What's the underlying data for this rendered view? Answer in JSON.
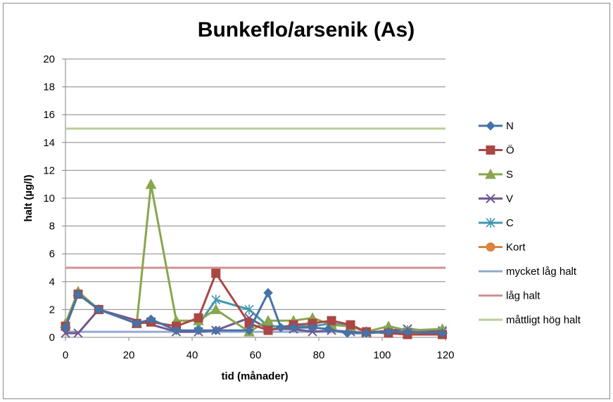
{
  "chart_data": {
    "type": "line",
    "title": "Bunkeflo/arsenik (As)",
    "xlabel": "tid (månader)",
    "ylabel": "halt (µg/l)",
    "xlim": [
      0,
      120
    ],
    "ylim": [
      0,
      20
    ],
    "xticks": [
      0,
      20,
      40,
      60,
      80,
      100,
      120
    ],
    "yticks": [
      0,
      2,
      4,
      6,
      8,
      10,
      12,
      14,
      16,
      18,
      20
    ],
    "grid": "horizontal",
    "legend_position": "right",
    "series": [
      {
        "name": "N",
        "color": "#4572a7",
        "marker": "diamond",
        "points": [
          [
            0,
            0.7
          ],
          [
            4,
            3.1
          ],
          [
            10.5,
            2.0
          ],
          [
            22.5,
            1.0
          ],
          [
            27,
            1.3
          ],
          [
            35,
            0.5
          ],
          [
            42,
            0.5
          ],
          [
            47.5,
            0.5
          ],
          [
            58,
            0.5
          ],
          [
            64,
            3.2
          ],
          [
            68,
            0.7
          ],
          [
            72,
            0.7
          ],
          [
            78,
            0.7
          ],
          [
            83,
            0.6
          ],
          [
            89,
            0.3
          ],
          [
            95,
            0.3
          ],
          [
            102,
            0.4
          ],
          [
            108,
            0.4
          ],
          [
            119,
            0.3
          ]
        ]
      },
      {
        "name": "Ö",
        "color": "#aa4643",
        "marker": "square",
        "points": [
          [
            0,
            0.8
          ],
          [
            4,
            3.1
          ],
          [
            10.5,
            2.0
          ],
          [
            22.5,
            1.0
          ],
          [
            27,
            1.1
          ],
          [
            35,
            0.8
          ],
          [
            42,
            1.4
          ],
          [
            47.5,
            4.6
          ],
          [
            58,
            1.0
          ],
          [
            64,
            0.5
          ],
          [
            72,
            0.9
          ],
          [
            78,
            1.0
          ],
          [
            84,
            1.2
          ],
          [
            90,
            0.9
          ],
          [
            95,
            0.4
          ],
          [
            102,
            0.3
          ],
          [
            108,
            0.2
          ],
          [
            119,
            0.2
          ]
        ]
      },
      {
        "name": "S",
        "color": "#89a54e",
        "marker": "triangle",
        "points": [
          [
            0,
            1.0
          ],
          [
            4,
            3.3
          ],
          [
            10.5,
            2.0
          ],
          [
            22.5,
            1.0
          ],
          [
            27,
            11.0
          ],
          [
            35,
            1.2
          ],
          [
            42,
            1.2
          ],
          [
            47.5,
            2.0
          ],
          [
            58,
            0.4
          ],
          [
            64,
            1.2
          ],
          [
            72,
            1.2
          ],
          [
            78,
            1.4
          ],
          [
            84,
            0.9
          ],
          [
            90,
            0.8
          ],
          [
            95,
            0.4
          ],
          [
            102,
            0.8
          ],
          [
            108,
            0.5
          ],
          [
            119,
            0.6
          ]
        ]
      },
      {
        "name": "V",
        "color": "#71588f",
        "marker": "x",
        "points": [
          [
            0,
            0.3
          ],
          [
            4,
            0.3
          ],
          [
            10.5,
            2.0
          ],
          [
            35,
            0.4
          ],
          [
            42,
            0.4
          ],
          [
            47.5,
            0.5
          ],
          [
            58,
            1.4
          ],
          [
            64,
            0.6
          ],
          [
            72,
            0.6
          ],
          [
            78,
            0.4
          ],
          [
            84,
            0.5
          ],
          [
            90,
            0.4
          ],
          [
            95,
            0.3
          ],
          [
            102,
            0.5
          ],
          [
            108,
            0.6
          ],
          [
            119,
            0.4
          ]
        ]
      },
      {
        "name": "C",
        "color": "#4198af",
        "marker": "star",
        "points": [
          [
            42,
            0.9
          ],
          [
            47.5,
            2.7
          ],
          [
            58,
            2.0
          ],
          [
            64,
            0.8
          ],
          [
            72,
            0.8
          ],
          [
            78,
            0.8
          ],
          [
            84,
            1.0
          ],
          [
            90,
            0.8
          ],
          [
            95,
            0.4
          ],
          [
            102,
            0.4
          ],
          [
            108,
            0.4
          ],
          [
            119,
            0.5
          ]
        ]
      },
      {
        "name": "Kort",
        "color": "#db843d",
        "marker": "circle",
        "points": [
          [
            102,
            0.4
          ],
          [
            119,
            0.2
          ]
        ]
      },
      {
        "name": "mycket låg halt",
        "color": "#93a9cf",
        "marker": "none",
        "points": [
          [
            0,
            0.4
          ],
          [
            120,
            0.4
          ]
        ]
      },
      {
        "name": "låg halt",
        "color": "#d19392",
        "marker": "none",
        "points": [
          [
            0,
            5
          ],
          [
            120,
            5
          ]
        ]
      },
      {
        "name": "måttligt hög halt",
        "color": "#b9cd96",
        "marker": "none",
        "points": [
          [
            0,
            15
          ],
          [
            120,
            15
          ]
        ]
      }
    ]
  }
}
